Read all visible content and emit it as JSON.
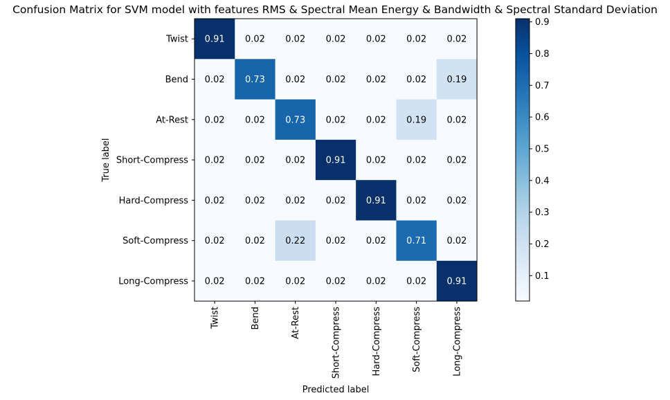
{
  "chart_data": {
    "type": "heatmap",
    "title": "Confusion Matrix for SVM model with features RMS & Spectral Mean Energy & Bandwidth & Spectral Standard Deviation",
    "xlabel": "Predicted label",
    "ylabel": "True label",
    "row_labels": [
      "Twist",
      "Bend",
      "At-Rest",
      "Short-Compress",
      "Hard-Compress",
      "Soft-Compress",
      "Long-Compress"
    ],
    "col_labels": [
      "Twist",
      "Bend",
      "At-Rest",
      "Short-Compress",
      "Hard-Compress",
      "Soft-Compress",
      "Long-Compress"
    ],
    "values": [
      [
        0.91,
        0.02,
        0.02,
        0.02,
        0.02,
        0.02,
        0.02
      ],
      [
        0.02,
        0.73,
        0.02,
        0.02,
        0.02,
        0.02,
        0.19
      ],
      [
        0.02,
        0.02,
        0.73,
        0.02,
        0.02,
        0.19,
        0.02
      ],
      [
        0.02,
        0.02,
        0.02,
        0.91,
        0.02,
        0.02,
        0.02
      ],
      [
        0.02,
        0.02,
        0.02,
        0.02,
        0.91,
        0.02,
        0.02
      ],
      [
        0.02,
        0.02,
        0.22,
        0.02,
        0.02,
        0.71,
        0.02
      ],
      [
        0.02,
        0.02,
        0.02,
        0.02,
        0.02,
        0.02,
        0.91
      ]
    ],
    "colormap": "Blues",
    "colorbar": {
      "min": 0.02,
      "max": 0.91,
      "ticks": [
        0.1,
        0.2,
        0.3,
        0.4,
        0.5,
        0.6,
        0.7,
        0.8,
        0.9
      ]
    },
    "grid": false
  }
}
